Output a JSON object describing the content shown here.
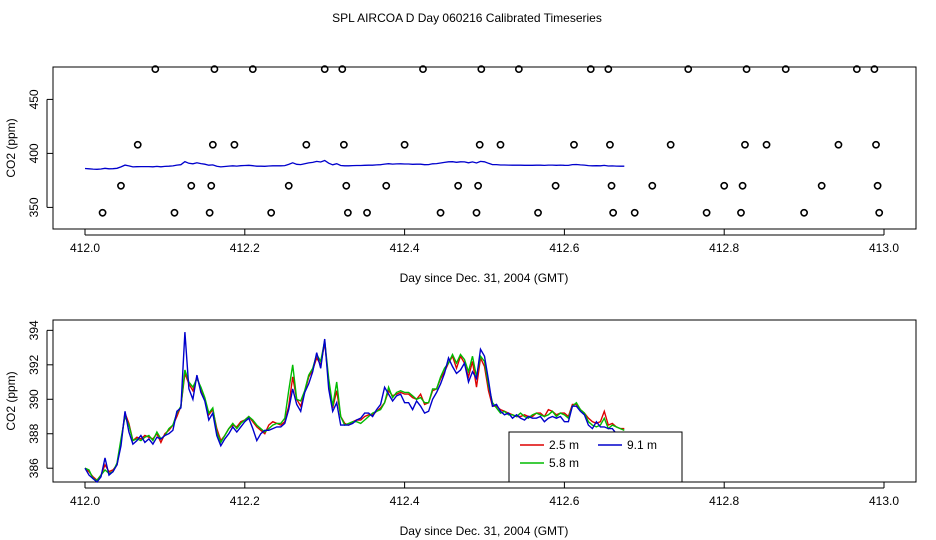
{
  "title": "SPL AIRCOA D  Day 060216  Calibrated Timeseries",
  "colors": {
    "s25": "#dd0000",
    "s58": "#00bb00",
    "s91": "#0000cc",
    "overview": "#0000cc"
  },
  "chart_data": [
    {
      "type": "scatter",
      "xlabel": "Day since Dec. 31, 2004 (GMT)",
      "ylabel": "CO2 (ppm)",
      "xlim": [
        412.0,
        413.0
      ],
      "ylim": [
        330,
        480
      ],
      "x_ticks": [
        "412.0",
        "412.2",
        "412.4",
        "412.6",
        "412.8",
        "413.0"
      ],
      "y_ticks": [
        "350",
        "400",
        "450"
      ],
      "y_tick_values": [
        350,
        400,
        450
      ],
      "circle_levels": [
        345,
        370,
        408,
        478
      ],
      "circles": [
        {
          "x": 412.022,
          "y": 345
        },
        {
          "x": 412.045,
          "y": 370
        },
        {
          "x": 412.066,
          "y": 408
        },
        {
          "x": 412.088,
          "y": 478
        },
        {
          "x": 412.112,
          "y": 345
        },
        {
          "x": 412.133,
          "y": 370
        },
        {
          "x": 412.156,
          "y": 345
        },
        {
          "x": 412.158,
          "y": 370
        },
        {
          "x": 412.16,
          "y": 408
        },
        {
          "x": 412.162,
          "y": 478
        },
        {
          "x": 412.187,
          "y": 408
        },
        {
          "x": 412.21,
          "y": 478
        },
        {
          "x": 412.233,
          "y": 345
        },
        {
          "x": 412.255,
          "y": 370
        },
        {
          "x": 412.277,
          "y": 408
        },
        {
          "x": 412.3,
          "y": 478
        },
        {
          "x": 412.322,
          "y": 478
        },
        {
          "x": 412.324,
          "y": 408
        },
        {
          "x": 412.327,
          "y": 370
        },
        {
          "x": 412.329,
          "y": 345
        },
        {
          "x": 412.353,
          "y": 345
        },
        {
          "x": 412.377,
          "y": 370
        },
        {
          "x": 412.4,
          "y": 408
        },
        {
          "x": 412.423,
          "y": 478
        },
        {
          "x": 412.445,
          "y": 345
        },
        {
          "x": 412.467,
          "y": 370
        },
        {
          "x": 412.49,
          "y": 345
        },
        {
          "x": 412.492,
          "y": 370
        },
        {
          "x": 412.494,
          "y": 408
        },
        {
          "x": 412.496,
          "y": 478
        },
        {
          "x": 412.52,
          "y": 408
        },
        {
          "x": 412.543,
          "y": 478
        },
        {
          "x": 412.567,
          "y": 345
        },
        {
          "x": 412.589,
          "y": 370
        },
        {
          "x": 412.612,
          "y": 408
        },
        {
          "x": 412.633,
          "y": 478
        },
        {
          "x": 412.655,
          "y": 478
        },
        {
          "x": 412.657,
          "y": 408
        },
        {
          "x": 412.659,
          "y": 370
        },
        {
          "x": 412.661,
          "y": 345
        },
        {
          "x": 412.688,
          "y": 345
        },
        {
          "x": 412.71,
          "y": 370
        },
        {
          "x": 412.733,
          "y": 408
        },
        {
          "x": 412.755,
          "y": 478
        },
        {
          "x": 412.778,
          "y": 345
        },
        {
          "x": 412.8,
          "y": 370
        },
        {
          "x": 412.821,
          "y": 345
        },
        {
          "x": 412.823,
          "y": 370
        },
        {
          "x": 412.826,
          "y": 408
        },
        {
          "x": 412.828,
          "y": 478
        },
        {
          "x": 412.853,
          "y": 408
        },
        {
          "x": 412.877,
          "y": 478
        },
        {
          "x": 412.9,
          "y": 345
        },
        {
          "x": 412.922,
          "y": 370
        },
        {
          "x": 412.943,
          "y": 408
        },
        {
          "x": 412.966,
          "y": 478
        },
        {
          "x": 412.988,
          "y": 478
        },
        {
          "x": 412.99,
          "y": 408
        },
        {
          "x": 412.992,
          "y": 370
        },
        {
          "x": 412.994,
          "y": 345
        }
      ]
    },
    {
      "type": "line",
      "xlabel": "Day since Dec. 31, 2004 (GMT)",
      "ylabel": "CO2 (ppm)",
      "xlim": [
        412.0,
        413.0
      ],
      "ylim": [
        385.2,
        394.6
      ],
      "x_ticks": [
        "412.0",
        "412.2",
        "412.4",
        "412.6",
        "412.8",
        "413.0"
      ],
      "y_ticks": [
        "386",
        "388",
        "390",
        "392",
        "394"
      ],
      "y_tick_values": [
        386,
        388,
        390,
        392,
        394
      ],
      "legend": "bottom-center",
      "legend_rows": [
        [
          {
            "series": 0,
            "label": "2.5 m"
          },
          {
            "series": 2,
            "label": "9.1 m"
          }
        ],
        [
          {
            "series": 1,
            "label": "5.8 m"
          }
        ]
      ],
      "series": [
        {
          "name": "2.5 m",
          "color": "#dd0000",
          "x": [],
          "y": []
        },
        {
          "name": "5.8 m",
          "color": "#00bb00",
          "x": [],
          "y": []
        },
        {
          "name": "9.1 m",
          "color": "#0000cc",
          "x": [],
          "y": []
        }
      ],
      "series_x_start": 412.0,
      "series_x_step": 0.005,
      "series_values": {
        "2.5 m": [
          386.0,
          385.8,
          385.5,
          385.3,
          385.6,
          386.2,
          385.8,
          385.9,
          386.2,
          387.5,
          389.2,
          388.6,
          387.6,
          387.8,
          387.7,
          387.9,
          387.8,
          387.7,
          388.0,
          387.5,
          388.0,
          388.2,
          388.5,
          389.0,
          389.6,
          391.5,
          390.9,
          390.5,
          391.3,
          390.6,
          390.0,
          389.1,
          389.4,
          388.3,
          387.6,
          387.9,
          388.3,
          388.5,
          388.4,
          388.7,
          388.8,
          389.0,
          388.7,
          388.4,
          388.2,
          388.0,
          388.5,
          388.7,
          388.6,
          388.5,
          388.7,
          389.6,
          391.3,
          390.0,
          389.6,
          390.4,
          391.3,
          391.7,
          392.4,
          392.0,
          393.3,
          391.0,
          389.5,
          390.5,
          389.0,
          388.6,
          388.5,
          388.7,
          388.8,
          388.8,
          389.0,
          389.1,
          389.1,
          389.3,
          389.5,
          389.8,
          390.5,
          390.2,
          390.3,
          390.4,
          390.3,
          390.3,
          390.1,
          390.0,
          390.3,
          389.7,
          389.8,
          390.5,
          390.6,
          391.2,
          391.6,
          392.1,
          392.5,
          391.8,
          392.5,
          392.1,
          391.3,
          392.2,
          390.7,
          392.4,
          391.9,
          390.5,
          389.6,
          389.6,
          389.4,
          389.3,
          389.2,
          389.1,
          389.0,
          389.0,
          389.1,
          389.0,
          389.0,
          389.2,
          389.2,
          389.0,
          389.4,
          389.3,
          389.1,
          389.2,
          389.2,
          389.0,
          389.7,
          389.7,
          389.4,
          389.2,
          388.9,
          388.7,
          388.6,
          388.7,
          389.3,
          388.5,
          388.6,
          388.4,
          388.3,
          388.3
        ],
        "5.8 m": [
          386.0,
          385.9,
          385.4,
          385.3,
          385.6,
          385.9,
          385.7,
          385.8,
          386.3,
          387.7,
          389.0,
          388.5,
          387.6,
          387.7,
          387.6,
          387.8,
          387.9,
          387.6,
          388.1,
          387.7,
          387.9,
          388.3,
          388.5,
          389.2,
          389.6,
          391.7,
          391.0,
          390.7,
          391.2,
          390.7,
          390.1,
          389.2,
          389.5,
          388.1,
          387.5,
          387.9,
          388.3,
          388.6,
          388.3,
          388.6,
          388.8,
          389.0,
          388.8,
          388.5,
          388.3,
          388.1,
          388.3,
          388.5,
          388.6,
          388.6,
          388.9,
          390.5,
          392.0,
          390.0,
          389.9,
          390.5,
          391.4,
          391.8,
          392.6,
          392.2,
          393.4,
          391.2,
          389.6,
          391.0,
          389.0,
          388.5,
          388.6,
          388.7,
          388.7,
          388.6,
          388.8,
          389.0,
          389.2,
          389.3,
          389.4,
          389.8,
          390.7,
          390.1,
          390.4,
          390.5,
          390.4,
          390.4,
          390.2,
          390.0,
          390.1,
          389.8,
          389.8,
          390.6,
          390.6,
          391.3,
          391.8,
          392.1,
          392.6,
          392.1,
          392.6,
          392.3,
          391.6,
          392.5,
          391.3,
          392.5,
          392.2,
          390.8,
          389.8,
          389.5,
          389.2,
          389.3,
          389.1,
          389.1,
          389.0,
          389.2,
          389.0,
          388.9,
          389.1,
          389.2,
          389.1,
          389.0,
          389.1,
          389.3,
          389.0,
          389.2,
          389.1,
          388.9,
          389.6,
          389.8,
          389.4,
          389.2,
          388.7,
          388.5,
          388.4,
          388.5,
          388.9,
          388.3,
          388.5,
          388.4,
          388.3,
          388.2
        ],
        "9.1 m": [
          386.0,
          385.6,
          385.4,
          385.2,
          385.5,
          386.6,
          385.6,
          385.8,
          386.2,
          387.3,
          389.3,
          388.1,
          387.4,
          387.6,
          387.9,
          387.5,
          387.7,
          387.4,
          387.8,
          387.7,
          387.9,
          388.0,
          388.2,
          389.3,
          389.5,
          393.9,
          390.6,
          390.0,
          391.4,
          390.4,
          389.9,
          388.8,
          389.2,
          387.9,
          387.3,
          387.7,
          388.0,
          388.4,
          388.1,
          388.4,
          388.7,
          388.9,
          388.3,
          387.6,
          388.0,
          388.2,
          388.2,
          388.3,
          388.4,
          388.4,
          388.6,
          389.4,
          390.6,
          389.7,
          389.3,
          390.4,
          390.9,
          391.6,
          392.7,
          391.8,
          393.5,
          390.6,
          389.3,
          389.8,
          388.5,
          388.5,
          388.5,
          388.6,
          388.8,
          388.9,
          389.2,
          389.2,
          389.0,
          389.4,
          389.7,
          390.7,
          390.3,
          389.9,
          390.2,
          390.3,
          389.8,
          389.8,
          389.4,
          389.9,
          389.6,
          389.2,
          389.3,
          390.0,
          390.4,
          390.9,
          391.5,
          392.4,
          391.9,
          391.5,
          391.7,
          392.1,
          391.0,
          391.6,
          391.2,
          392.9,
          392.5,
          391.1,
          389.6,
          389.7,
          389.3,
          389.1,
          389.2,
          388.9,
          389.1,
          388.9,
          388.8,
          389.0,
          388.9,
          388.9,
          389.0,
          388.7,
          388.9,
          389.0,
          388.9,
          389.0,
          388.7,
          388.7,
          389.6,
          389.6,
          389.3,
          389.1,
          388.5,
          388.3,
          388.7,
          388.4,
          388.4,
          388.3,
          388.3,
          388.0,
          387.9,
          387.9
        ]
      }
    }
  ]
}
